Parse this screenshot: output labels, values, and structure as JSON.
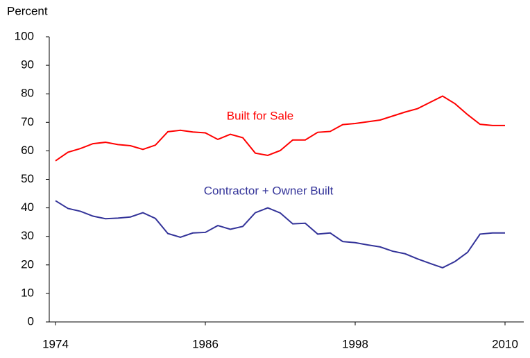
{
  "chart_data": {
    "type": "line",
    "y_label": "Percent",
    "x": [
      1974,
      1975,
      1976,
      1977,
      1978,
      1979,
      1980,
      1981,
      1982,
      1983,
      1984,
      1985,
      1986,
      1987,
      1988,
      1989,
      1990,
      1991,
      1992,
      1993,
      1994,
      1995,
      1996,
      1997,
      1998,
      1999,
      2000,
      2001,
      2002,
      2003,
      2004,
      2005,
      2006,
      2007,
      2008,
      2009,
      2010
    ],
    "series": [
      {
        "name": "Built for Sale",
        "color": "#ff0000",
        "values": [
          56.5,
          59.5,
          60.8,
          62.5,
          63,
          62.2,
          61.8,
          60.5,
          62,
          66.7,
          67.2,
          66.6,
          66.3,
          64,
          65.8,
          64.6,
          59.2,
          58.4,
          60.1,
          63.8,
          63.8,
          66.5,
          66.8,
          69.2,
          69.6,
          70.2,
          70.8,
          72.2,
          73.6,
          74.8,
          77,
          79.2,
          76.5,
          72.7,
          69.3,
          68.9,
          68.9
        ]
      },
      {
        "name": "Contractor + Owner Built",
        "color": "#333399",
        "values": [
          42.5,
          39.8,
          38.8,
          37.1,
          36.2,
          36.4,
          36.8,
          38.3,
          36.3,
          31,
          29.7,
          31.2,
          31.4,
          33.8,
          32.5,
          33.5,
          38.3,
          40,
          38.2,
          34.4,
          34.6,
          30.8,
          31.2,
          28.2,
          27.8,
          27,
          26.3,
          24.8,
          23.9,
          22.1,
          20.5,
          19,
          21.2,
          24.4,
          30.8,
          31.2,
          31.2
        ]
      }
    ],
    "xlim": [
      1973.5,
      2011.5
    ],
    "xticks": [
      1974,
      1986,
      1998,
      2010
    ],
    "ylim": [
      0,
      100
    ],
    "yticks": [
      0,
      10,
      20,
      30,
      40,
      50,
      60,
      70,
      80,
      90,
      100
    ]
  }
}
